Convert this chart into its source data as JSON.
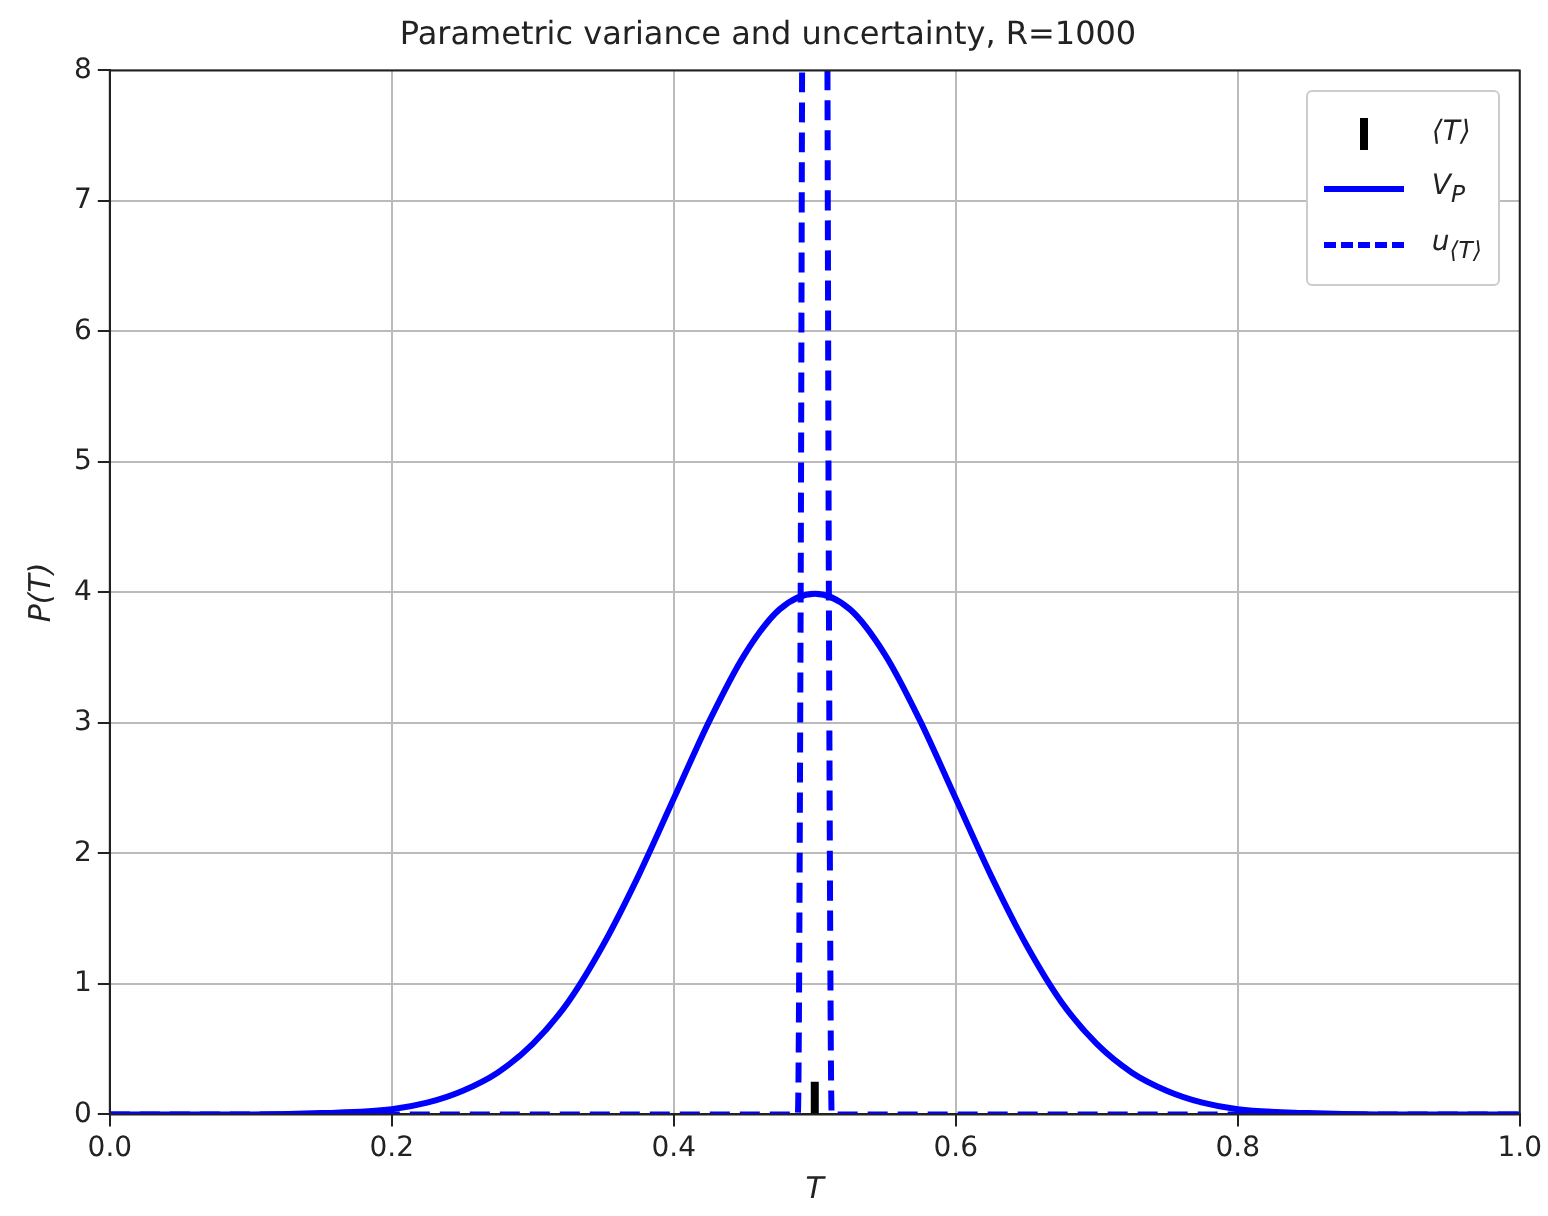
{
  "chart_data": {
    "type": "line",
    "title": "Parametric variance and uncertainty, R=1000",
    "xlabel": "T",
    "ylabel": "P(T)",
    "xlim": [
      0,
      1
    ],
    "xticks": [
      {
        "value": 0,
        "label": "0.0"
      },
      {
        "value": 0.2,
        "label": "0.2"
      },
      {
        "value": 0.4,
        "label": "0.4"
      },
      {
        "value": 0.6,
        "label": "0.6"
      },
      {
        "value": 0.8,
        "label": "0.8"
      },
      {
        "value": 1,
        "label": "1.0"
      }
    ],
    "ylim": [
      0,
      8
    ],
    "yticks": [
      0,
      1,
      2,
      3,
      4,
      5,
      6,
      7,
      8
    ],
    "grid": true,
    "legend": "top right",
    "series": [
      {
        "name": "⟨T⟩",
        "type": "line",
        "color": "#000000",
        "line_style": "solid",
        "marker": "none",
        "x": [
          0.5,
          0.5
        ],
        "values": [
          0,
          0.25
        ]
      },
      {
        "name": "V$_{P}$",
        "type": "line",
        "color": "#0000ff",
        "line_style": "solid",
        "marker": "none",
        "x": [
          0,
          0.1,
          0.15,
          0.2,
          0.225,
          0.25,
          0.275,
          0.3,
          0.325,
          0.35,
          0.375,
          0.4,
          0.425,
          0.45,
          0.475,
          0.5,
          0.525,
          0.55,
          0.575,
          0.6,
          0.625,
          0.65,
          0.675,
          0.7,
          0.725,
          0.75,
          0.775,
          0.8,
          0.85,
          0.9,
          1
        ],
        "values": [
          0,
          0,
          0.01,
          0.04,
          0.09,
          0.18,
          0.32,
          0.54,
          0.86,
          1.3,
          1.83,
          2.42,
          3.01,
          3.52,
          3.87,
          3.99,
          3.87,
          3.52,
          3.01,
          2.42,
          1.83,
          1.3,
          0.86,
          0.54,
          0.32,
          0.18,
          0.09,
          0.04,
          0.01,
          0,
          0
        ]
      },
      {
        "name": "u$_{⟨T⟩}$",
        "type": "line",
        "color": "#0000ff",
        "line_style": "dashed",
        "marker": "none",
        "x": [
          0,
          0.488,
          0.49,
          0.491,
          0.492,
          0.508,
          0.509,
          0.51,
          0.512,
          1
        ],
        "values": [
          0,
          0,
          4,
          8,
          null,
          null,
          8,
          4,
          0,
          0
        ]
      }
    ]
  }
}
